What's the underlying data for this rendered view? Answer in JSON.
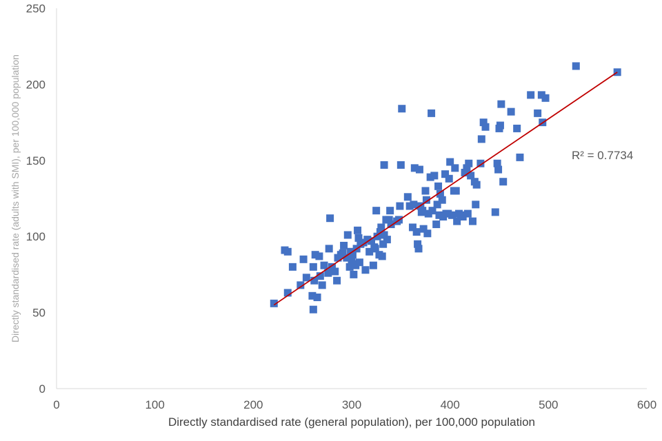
{
  "chart_data": {
    "type": "scatter",
    "xlabel": "Directly standardised rate (general population), per 100,000 population",
    "ylabel": "Directly standardised rate (adults with SMI), per 100,000 population",
    "xlim": [
      0,
      600
    ],
    "ylim": [
      0,
      250
    ],
    "x_ticks": [
      0,
      100,
      200,
      300,
      400,
      500,
      600
    ],
    "y_ticks": [
      0,
      50,
      100,
      150,
      200,
      250
    ],
    "grid": false,
    "legend": "none",
    "marker_color": "#4472c4",
    "trendline": {
      "type": "linear",
      "color": "#c00000",
      "x": [
        221,
        570
      ],
      "y": [
        55,
        208
      ],
      "r2_label": "R² = 0.7734"
    },
    "points": [
      [
        221,
        56
      ],
      [
        232,
        91
      ],
      [
        235,
        90
      ],
      [
        235,
        63
      ],
      [
        240,
        80
      ],
      [
        248,
        68
      ],
      [
        251,
        85
      ],
      [
        254,
        73
      ],
      [
        260,
        61
      ],
      [
        261,
        52
      ],
      [
        261,
        80
      ],
      [
        262,
        71
      ],
      [
        263,
        88
      ],
      [
        265,
        60
      ],
      [
        267,
        87
      ],
      [
        268,
        74
      ],
      [
        270,
        68
      ],
      [
        272,
        81
      ],
      [
        276,
        76
      ],
      [
        277,
        92
      ],
      [
        278,
        112
      ],
      [
        280,
        80
      ],
      [
        283,
        77
      ],
      [
        285,
        71
      ],
      [
        286,
        86
      ],
      [
        289,
        88
      ],
      [
        291,
        89
      ],
      [
        292,
        94
      ],
      [
        295,
        86
      ],
      [
        296,
        101
      ],
      [
        298,
        80
      ],
      [
        299,
        90
      ],
      [
        300,
        84
      ],
      [
        301,
        88
      ],
      [
        302,
        75
      ],
      [
        303,
        82
      ],
      [
        304,
        81
      ],
      [
        305,
        92
      ],
      [
        306,
        104
      ],
      [
        307,
        99
      ],
      [
        308,
        83
      ],
      [
        309,
        95
      ],
      [
        312,
        96
      ],
      [
        314,
        78
      ],
      [
        316,
        98
      ],
      [
        318,
        90
      ],
      [
        320,
        97
      ],
      [
        322,
        81
      ],
      [
        323,
        93
      ],
      [
        324,
        92
      ],
      [
        325,
        117
      ],
      [
        326,
        100
      ],
      [
        328,
        88
      ],
      [
        329,
        103
      ],
      [
        330,
        106
      ],
      [
        331,
        87
      ],
      [
        332,
        95
      ],
      [
        333,
        101
      ],
      [
        333,
        147
      ],
      [
        335,
        111
      ],
      [
        336,
        98
      ],
      [
        338,
        111
      ],
      [
        339,
        117
      ],
      [
        340,
        108
      ],
      [
        346,
        110
      ],
      [
        348,
        111
      ],
      [
        349,
        120
      ],
      [
        350,
        147
      ],
      [
        351,
        184
      ],
      [
        357,
        126
      ],
      [
        359,
        120
      ],
      [
        362,
        106
      ],
      [
        363,
        121
      ],
      [
        364,
        145
      ],
      [
        366,
        103
      ],
      [
        367,
        95
      ],
      [
        368,
        92
      ],
      [
        369,
        144
      ],
      [
        370,
        120
      ],
      [
        371,
        116
      ],
      [
        372,
        117
      ],
      [
        373,
        105
      ],
      [
        375,
        130
      ],
      [
        376,
        124
      ],
      [
        377,
        102
      ],
      [
        378,
        115
      ],
      [
        380,
        139
      ],
      [
        381,
        181
      ],
      [
        382,
        117
      ],
      [
        384,
        140
      ],
      [
        386,
        108
      ],
      [
        387,
        121
      ],
      [
        388,
        133
      ],
      [
        389,
        114
      ],
      [
        390,
        128
      ],
      [
        392,
        124
      ],
      [
        393,
        113
      ],
      [
        395,
        141
      ],
      [
        396,
        115
      ],
      [
        398,
        115
      ],
      [
        399,
        138
      ],
      [
        400,
        149
      ],
      [
        402,
        114
      ],
      [
        404,
        130
      ],
      [
        405,
        145
      ],
      [
        406,
        130
      ],
      [
        407,
        110
      ],
      [
        409,
        115
      ],
      [
        411,
        114
      ],
      [
        413,
        113
      ],
      [
        415,
        142
      ],
      [
        417,
        145
      ],
      [
        418,
        115
      ],
      [
        419,
        148
      ],
      [
        421,
        140
      ],
      [
        423,
        110
      ],
      [
        425,
        136
      ],
      [
        426,
        121
      ],
      [
        427,
        134
      ],
      [
        431,
        148
      ],
      [
        432,
        164
      ],
      [
        434,
        175
      ],
      [
        436,
        172
      ],
      [
        446,
        116
      ],
      [
        448,
        148
      ],
      [
        449,
        144
      ],
      [
        450,
        171
      ],
      [
        451,
        173
      ],
      [
        452,
        187
      ],
      [
        454,
        136
      ],
      [
        462,
        182
      ],
      [
        468,
        171
      ],
      [
        471,
        152
      ],
      [
        482,
        193
      ],
      [
        489,
        181
      ],
      [
        493,
        193
      ],
      [
        494,
        175
      ],
      [
        497,
        191
      ],
      [
        528,
        212
      ],
      [
        570,
        208
      ]
    ]
  }
}
